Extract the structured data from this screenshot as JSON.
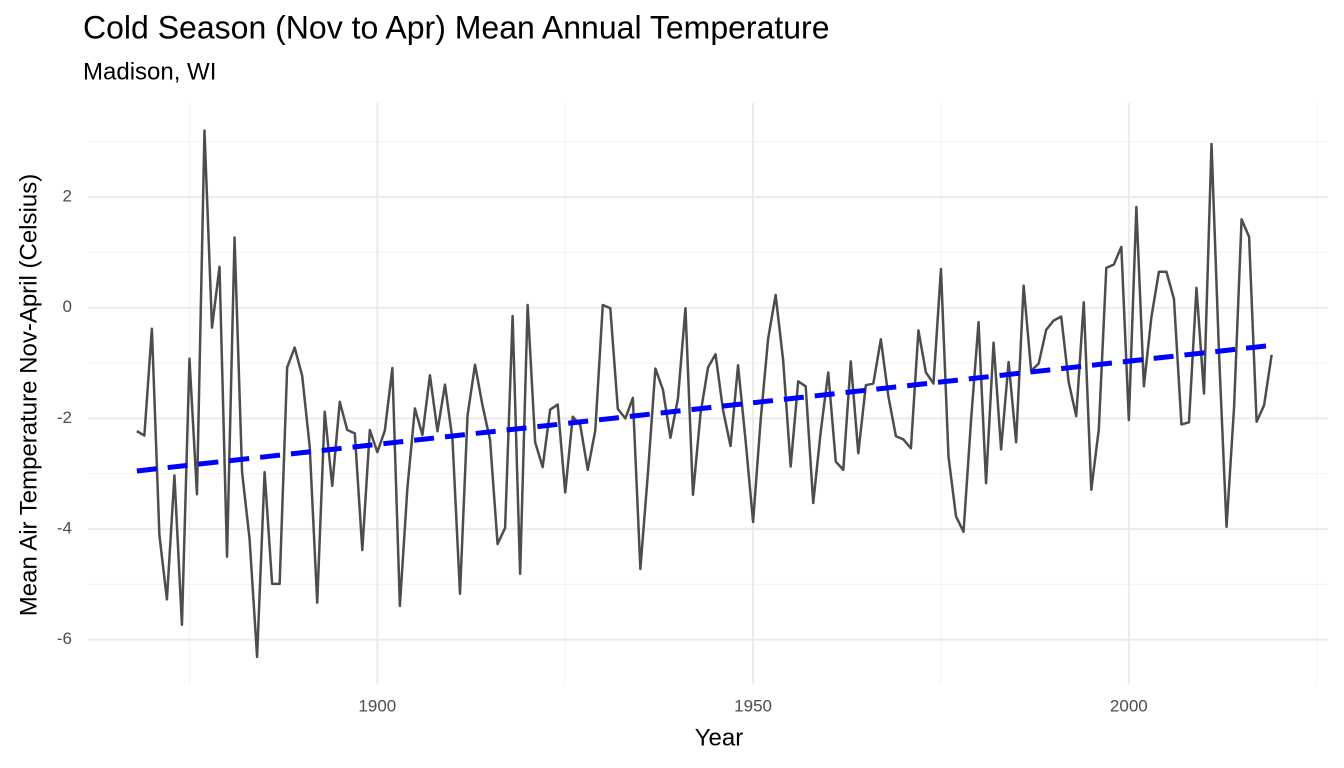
{
  "chart_data": {
    "type": "line",
    "title": "Cold Season (Nov to Apr) Mean Annual Temperature",
    "subtitle": "Madison, WI",
    "x_label": "Year",
    "y_label": "Mean Air Temperature Nov-April (Celsius)",
    "x": [
      1868,
      1869,
      1870,
      1871,
      1872,
      1873,
      1874,
      1875,
      1876,
      1877,
      1878,
      1879,
      1880,
      1881,
      1882,
      1883,
      1884,
      1885,
      1886,
      1887,
      1888,
      1889,
      1890,
      1891,
      1892,
      1893,
      1894,
      1895,
      1896,
      1897,
      1898,
      1899,
      1900,
      1901,
      1902,
      1903,
      1904,
      1905,
      1906,
      1907,
      1908,
      1909,
      1910,
      1911,
      1912,
      1913,
      1914,
      1915,
      1916,
      1917,
      1918,
      1919,
      1920,
      1921,
      1922,
      1923,
      1924,
      1925,
      1926,
      1927,
      1928,
      1929,
      1930,
      1931,
      1932,
      1933,
      1934,
      1935,
      1936,
      1937,
      1938,
      1939,
      1940,
      1941,
      1942,
      1943,
      1944,
      1945,
      1946,
      1947,
      1948,
      1949,
      1950,
      1951,
      1952,
      1953,
      1954,
      1955,
      1956,
      1957,
      1958,
      1959,
      1960,
      1961,
      1962,
      1963,
      1964,
      1965,
      1966,
      1967,
      1968,
      1969,
      1970,
      1971,
      1972,
      1973,
      1974,
      1975,
      1976,
      1977,
      1978,
      1979,
      1980,
      1981,
      1982,
      1983,
      1984,
      1985,
      1986,
      1987,
      1988,
      1989,
      1990,
      1991,
      1992,
      1993,
      1994,
      1995,
      1996,
      1997,
      1998,
      1999,
      2000,
      2001,
      2002,
      2003,
      2004,
      2005,
      2006,
      2007,
      2008,
      2009,
      2010,
      2011,
      2012,
      2013,
      2014,
      2015,
      2016,
      2017,
      2018,
      2019
    ],
    "series": [
      {
        "name": "Temperature",
        "color": "#4d4d4d",
        "values": [
          -2.23,
          -2.31,
          -0.38,
          -4.11,
          -5.27,
          -3.03,
          -5.73,
          -0.92,
          -3.37,
          3.2,
          -0.36,
          0.74,
          -4.5,
          1.27,
          -2.97,
          -4.18,
          -6.31,
          -2.97,
          -4.99,
          -4.99,
          -1.08,
          -0.72,
          -1.23,
          -2.51,
          -5.33,
          -1.88,
          -3.22,
          -1.7,
          -2.21,
          -2.27,
          -4.38,
          -2.21,
          -2.61,
          -2.22,
          -1.09,
          -5.39,
          -3.26,
          -1.82,
          -2.3,
          -1.22,
          -2.23,
          -1.39,
          -2.38,
          -5.17,
          -1.95,
          -1.03,
          -1.77,
          -2.39,
          -4.27,
          -3.98,
          -0.15,
          -4.81,
          0.05,
          -2.43,
          -2.88,
          -1.84,
          -1.75,
          -3.34,
          -1.97,
          -2.12,
          -2.93,
          -2.22,
          0.05,
          -0.01,
          -1.83,
          -2.0,
          -1.63,
          -4.72,
          -3.0,
          -1.1,
          -1.48,
          -2.35,
          -1.64,
          -0.01,
          -3.38,
          -1.92,
          -1.08,
          -0.84,
          -1.85,
          -2.5,
          -1.04,
          -2.4,
          -3.87,
          -2.04,
          -0.56,
          0.23,
          -0.95,
          -2.87,
          -1.33,
          -1.42,
          -3.53,
          -2.24,
          -1.17,
          -2.78,
          -2.93,
          -0.97,
          -2.63,
          -1.4,
          -1.37,
          -0.57,
          -1.6,
          -2.32,
          -2.38,
          -2.54,
          -0.41,
          -1.17,
          -1.37,
          0.7,
          -2.69,
          -3.77,
          -4.05,
          -2.04,
          -0.26,
          -3.17,
          -0.63,
          -2.56,
          -0.98,
          -2.43,
          0.4,
          -1.14,
          -1.01,
          -0.4,
          -0.23,
          -0.16,
          -1.35,
          -1.96,
          0.1,
          -3.29,
          -2.2,
          0.72,
          0.78,
          1.1,
          -2.03,
          1.82,
          -1.42,
          -0.17,
          0.65,
          0.65,
          0.16,
          -2.11,
          -2.07,
          0.36,
          -1.55,
          2.96,
          -0.84,
          -3.96,
          -1.8,
          1.6,
          1.28,
          -2.06,
          -1.76,
          -0.85
        ]
      }
    ],
    "trend": {
      "x": [
        1868,
        2019
      ],
      "values": [
        -2.95,
        -0.68
      ],
      "color": "#0000ff"
    },
    "xlim": [
      1861.5,
      2026.5
    ],
    "ylim": [
      -6.8,
      3.7
    ],
    "xticks": [
      1900,
      1950,
      2000
    ],
    "yticks": [
      -6,
      -4,
      -2,
      0,
      2
    ],
    "xminor": [
      1875,
      1925,
      1975,
      2025
    ],
    "yminor": [
      -5,
      -3,
      -1,
      1,
      3
    ],
    "grid": true
  }
}
